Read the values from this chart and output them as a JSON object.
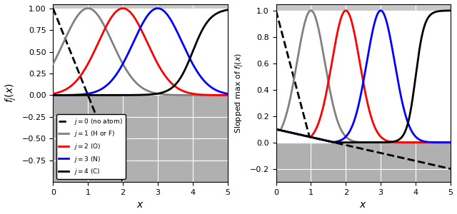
{
  "title_left": "$f_j(x)$",
  "xlabel": "$x$",
  "xlim": [
    0,
    5
  ],
  "ylim_left": [
    -1.0,
    1.05
  ],
  "ylim_right": [
    -0.3,
    1.05
  ],
  "centers": [
    1,
    2,
    3
  ],
  "sigma": 0.7,
  "colors": [
    "black",
    "gray",
    "red",
    "blue",
    "black"
  ],
  "linestyles": [
    "--",
    "-",
    "-",
    "-",
    "-"
  ],
  "linewidths": [
    2.0,
    2.0,
    2.0,
    2.0,
    2.0
  ],
  "legend_labels": [
    "$j = 0$ (no atom)",
    "$j = 1$ (H or F)",
    "$j = 2$ (O)",
    "$j = 3$ (N)",
    "$j = 4$ (C)"
  ],
  "gray_bg_color": "#b0b0b0",
  "top_gray_color": "#c8c8c8",
  "grid_color": "white",
  "yticks_left": [
    1.0,
    0.75,
    0.5,
    0.25,
    0.0,
    -0.25,
    -0.5,
    -0.75
  ],
  "ytick_labels_left": [
    "1.00",
    "0.75",
    "0.50",
    "0.25",
    "0.00",
    "-0.25",
    "-0.50",
    "-0.75"
  ],
  "yticks_right": [
    1.0,
    0.8,
    0.6,
    0.4,
    0.2,
    0.0,
    -0.2
  ],
  "slope_linear": -0.06,
  "intercept_linear": 0.1,
  "slopped_scale": 10.0
}
